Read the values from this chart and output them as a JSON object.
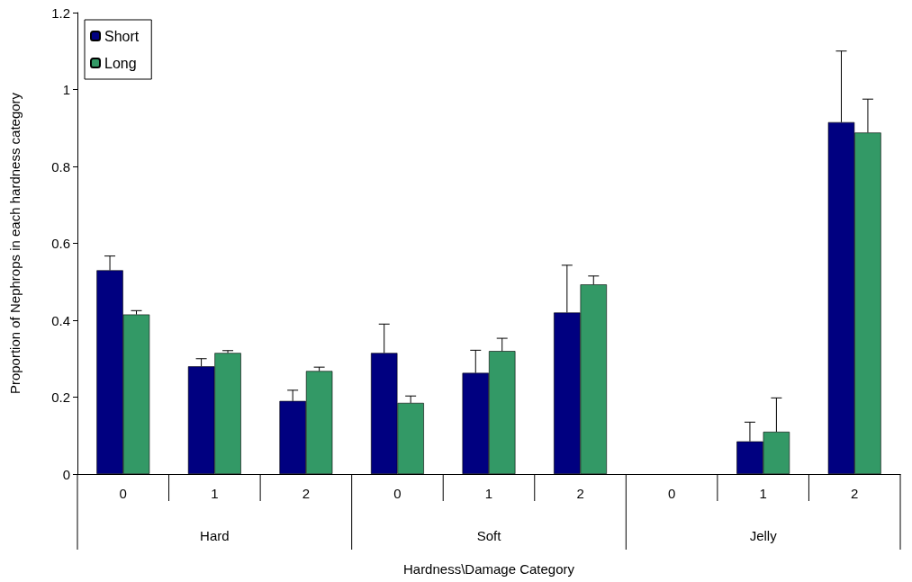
{
  "chart_data": {
    "type": "bar",
    "xlabel": "Hardness\\Damage Category",
    "ylabel": "Proportion of Nephrops in each hardness category",
    "categories": [
      "0",
      "1",
      "2",
      "0",
      "1",
      "2",
      "0",
      "1",
      "2"
    ],
    "annotations": [
      "Hard",
      "Soft",
      "Jelly"
    ],
    "series": [
      {
        "name": "Short",
        "color": "#000080",
        "values": [
          0.53,
          0.28,
          0.19,
          0.315,
          0.263,
          0.42,
          0,
          0.085,
          0.915
        ],
        "errors": [
          [
            0.53,
            0.567
          ],
          [
            0.28,
            0.3
          ],
          [
            0.19,
            0.218
          ],
          [
            0.315,
            0.39
          ],
          [
            0.263,
            0.322
          ],
          [
            0.42,
            0.543
          ],
          null,
          [
            0.085,
            0.135
          ],
          [
            0.915,
            1.1
          ]
        ]
      },
      {
        "name": "Long",
        "color": "#339966",
        "values": [
          0.415,
          0.315,
          0.268,
          0.185,
          0.32,
          0.493,
          0,
          0.11,
          0.888
        ],
        "errors": [
          [
            0.415,
            0.425
          ],
          [
            0.315,
            0.321
          ],
          [
            0.268,
            0.278
          ],
          [
            0.185,
            0.203
          ],
          [
            0.32,
            0.353
          ],
          [
            0.493,
            0.515
          ],
          null,
          [
            0.11,
            0.198
          ],
          [
            0.888,
            0.975
          ]
        ]
      }
    ],
    "ylim": [
      0,
      1.2
    ],
    "yticks": [
      0,
      0.2,
      0.4,
      0.6,
      0.8,
      1,
      1.2
    ],
    "grid": false,
    "legend": "top left"
  }
}
